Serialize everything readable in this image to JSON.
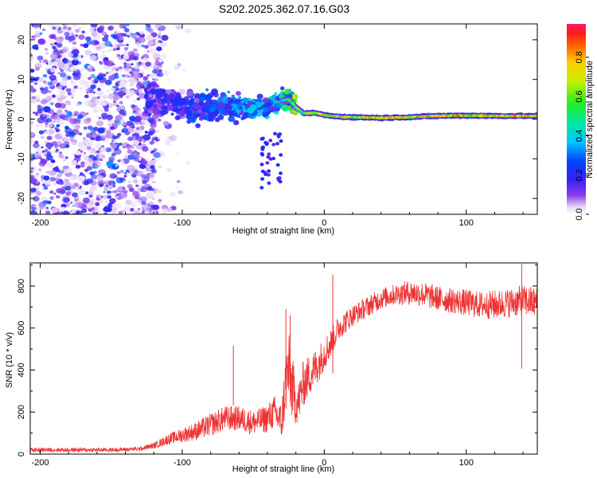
{
  "title": "S202.2025.362.07.16.G03",
  "chart_data": [
    {
      "type": "heatmap",
      "name": "spectrogram",
      "xlabel": "Height of straight line (km)",
      "ylabel": "Frequency (Hz)",
      "xlim": [
        -207,
        150
      ],
      "ylim": [
        -24,
        24
      ],
      "xticks": [
        -200,
        -100,
        0,
        100
      ],
      "yticks": [
        -20,
        -10,
        0,
        10,
        20
      ],
      "colorbar": {
        "label": "Normalized spectral amplitude",
        "range": [
          0,
          0.97
        ],
        "ticks": [
          0.0,
          0.2,
          0.4,
          0.6,
          0.8
        ],
        "tick_labels": [
          "0.0",
          "0.2",
          "0.4",
          "0.6",
          "0.8"
        ]
      },
      "ridge": {
        "description": "dominant frequency track vs height",
        "x": [
          -120,
          -100,
          -80,
          -60,
          -40,
          -32,
          -25,
          -20,
          -15,
          -10,
          -5,
          0,
          10,
          20,
          40,
          60,
          80,
          100,
          120,
          150
        ],
        "y": [
          5,
          3,
          3,
          3,
          3,
          4.5,
          5,
          3,
          1.5,
          1.5,
          1.5,
          1,
          0.6,
          0.5,
          0.3,
          0.5,
          0.8,
          0.9,
          0.8,
          0.8
        ],
        "amplitude": [
          0.2,
          0.25,
          0.3,
          0.35,
          0.4,
          0.45,
          0.6,
          0.7,
          0.75,
          0.8,
          0.82,
          0.85,
          0.9,
          0.92,
          0.9,
          0.92,
          0.95,
          0.96,
          0.96,
          0.96
        ]
      },
      "noise_region": {
        "x": [
          -207,
          -115
        ],
        "y": [
          -24,
          24
        ],
        "amplitude": 0.15
      }
    },
    {
      "type": "line",
      "name": "snr",
      "xlabel": "Height of straight line (km)",
      "ylabel": "SNR (10 * v/v)",
      "xlim": [
        -207,
        150
      ],
      "ylim": [
        0,
        910
      ],
      "xticks": [
        -200,
        -100,
        0,
        100
      ],
      "yticks": [
        0,
        200,
        400,
        600,
        800
      ],
      "color": "#ee3333",
      "series": [
        {
          "name": "SNR",
          "x": [
            -207,
            -180,
            -150,
            -130,
            -120,
            -110,
            -100,
            -90,
            -80,
            -70,
            -60,
            -50,
            -45,
            -40,
            -35,
            -30,
            -27,
            -25,
            -22,
            -20,
            -18,
            -15,
            -10,
            -5,
            0,
            5,
            10,
            20,
            30,
            40,
            50,
            60,
            70,
            80,
            90,
            100,
            110,
            120,
            130,
            140,
            150
          ],
          "y": [
            20,
            20,
            20,
            25,
            40,
            70,
            90,
            110,
            140,
            170,
            170,
            150,
            160,
            170,
            200,
            150,
            350,
            400,
            300,
            240,
            250,
            330,
            380,
            420,
            480,
            530,
            600,
            660,
            700,
            740,
            760,
            770,
            760,
            740,
            730,
            720,
            710,
            710,
            720,
            730,
            720
          ],
          "spread": [
            10,
            10,
            10,
            10,
            15,
            25,
            35,
            45,
            55,
            60,
            60,
            60,
            60,
            70,
            80,
            90,
            170,
            180,
            150,
            100,
            100,
            110,
            100,
            90,
            80,
            70,
            60,
            50,
            50,
            50,
            50,
            60,
            60,
            60,
            60,
            65,
            65,
            70,
            70,
            75,
            75
          ]
        }
      ],
      "spikes": [
        {
          "x": -64,
          "y": 515
        },
        {
          "x": -27,
          "y": 690
        },
        {
          "x": -24,
          "y": 660
        },
        {
          "x": 6,
          "y": 855
        },
        {
          "x": 139,
          "y": 905
        }
      ]
    }
  ]
}
